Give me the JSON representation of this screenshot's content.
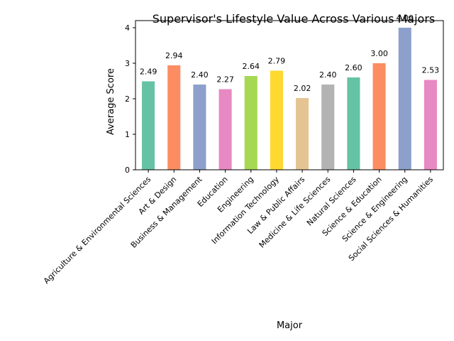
{
  "chart_data": {
    "type": "bar",
    "title": "Supervisor's Lifestyle Value Across Various Majors",
    "xlabel": "Major",
    "ylabel": "Average Score",
    "ylim": [
      0,
      4.2
    ],
    "yticks": [
      0,
      1,
      2,
      3,
      4
    ],
    "grid": false,
    "legend": "none",
    "categories": [
      "Agriculture & Environmental Sciences",
      "Art & Design",
      "Business & Management",
      "Education",
      "Engineering",
      "Information Technology",
      "Law & Public Affairs",
      "Medicine & Life Sciences",
      "Natural Sciences",
      "Science & Education",
      "Science & Engineering",
      "Social Sciences & Humanities"
    ],
    "values": [
      2.49,
      2.94,
      2.4,
      2.27,
      2.64,
      2.79,
      2.02,
      2.4,
      2.6,
      3.0,
      4.0,
      2.53
    ],
    "value_labels": [
      "2.49",
      "2.94",
      "2.40",
      "2.27",
      "2.64",
      "2.79",
      "2.02",
      "2.40",
      "2.60",
      "3.00",
      "4.00",
      "2.53"
    ],
    "colors": [
      "#66c2a5",
      "#fc8d62",
      "#8da0cb",
      "#e78ac3",
      "#a6d854",
      "#ffd92f",
      "#e5c494",
      "#b3b3b3",
      "#66c2a5",
      "#fc8d62",
      "#8da0cb",
      "#e78ac3"
    ]
  }
}
